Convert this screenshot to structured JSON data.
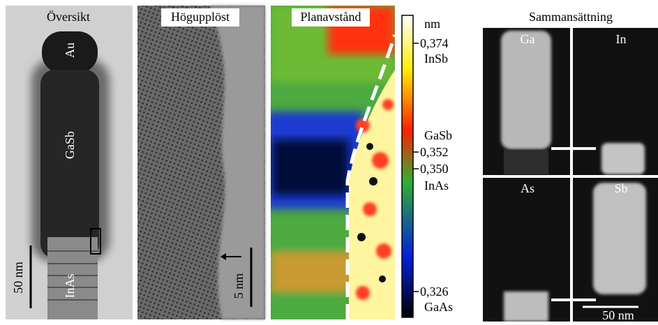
{
  "panels": [
    {
      "title": "Översikt",
      "labels": [
        "Au",
        "GaSb",
        "InAs"
      ],
      "scale_bar": "50 nm"
    },
    {
      "title": "Högupplöst",
      "scale_bar": "5 nm"
    },
    {
      "title": "Planavstånd"
    }
  ],
  "colorbar": {
    "unit": "nm",
    "ticks": [
      {
        "label": "0,374",
        "material": "InSb"
      },
      {
        "label": "0,352",
        "material": "GaSb"
      },
      {
        "label": "0,350",
        "material": "InAs"
      },
      {
        "label": "0,326",
        "material": "GaAs"
      }
    ]
  },
  "composition": {
    "title": "Sammansättning",
    "maps": [
      "Ga",
      "In",
      "As",
      "Sb"
    ],
    "scale_bar": "50 nm"
  }
}
